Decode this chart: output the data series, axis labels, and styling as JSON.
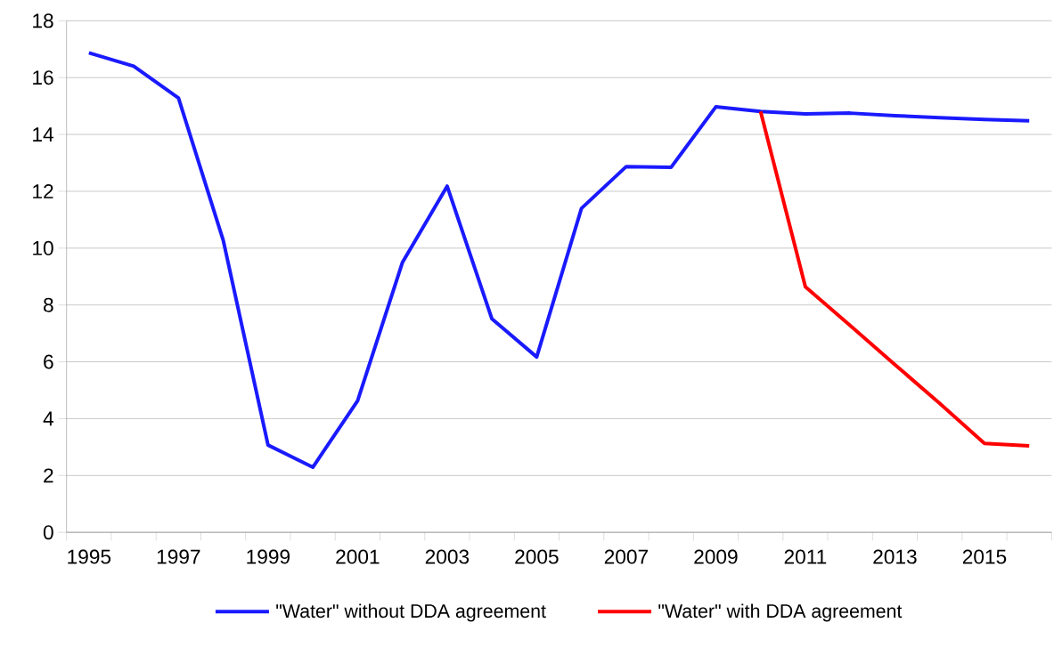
{
  "chart_data": {
    "type": "line",
    "categories": [
      "1995",
      null,
      "1997",
      null,
      "1999",
      null,
      "2001",
      null,
      "2003",
      null,
      "2005",
      null,
      "2007",
      null,
      "2009",
      null,
      "2011",
      null,
      "2013",
      null,
      "2015",
      null
    ],
    "series": [
      {
        "name": "\"Water\" without DDA agreement",
        "color": "#1a1aff",
        "values": [
          16.87,
          16.4,
          15.28,
          10.27,
          3.07,
          2.29,
          4.63,
          9.49,
          12.18,
          7.51,
          6.17,
          11.4,
          12.87,
          12.84,
          14.97,
          14.81,
          14.72,
          14.75,
          14.66,
          14.59,
          14.53,
          14.48
        ]
      },
      {
        "name": "\"Water\" with DDA agreement",
        "color": "#ff0000",
        "values": [
          null,
          null,
          null,
          null,
          null,
          null,
          null,
          null,
          null,
          null,
          null,
          null,
          null,
          null,
          null,
          14.81,
          8.64,
          7.28,
          5.9,
          4.54,
          3.13,
          3.04
        ]
      }
    ],
    "ylim": [
      0,
      18
    ],
    "yticks": [
      0,
      2,
      4,
      6,
      8,
      10,
      12,
      14,
      16,
      18
    ],
    "grid": "y",
    "legend": "bottom",
    "marker": "none",
    "line_style": "solid"
  }
}
